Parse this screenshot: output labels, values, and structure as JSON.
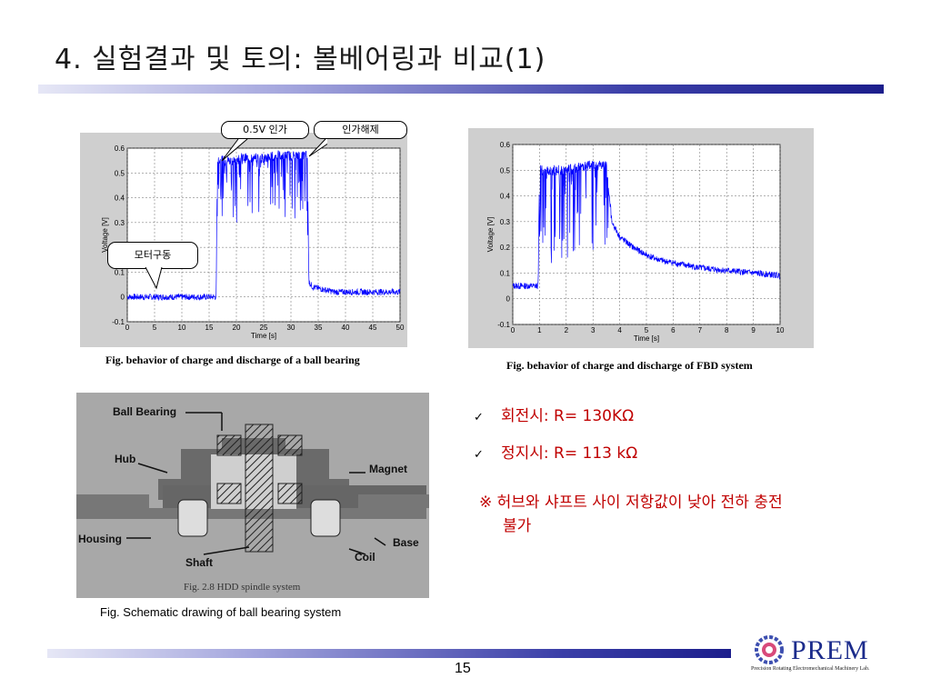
{
  "slide": {
    "title": "4. 실험결과 및 토의: 볼베어링과 비교(1)",
    "page_number": "15"
  },
  "plot_left": {
    "caption": "Fig.  behavior of charge and discharge of a ball bearing",
    "callout_apply": "0.5V 인가",
    "callout_release": "인가해제",
    "callout_motor": "모터구동"
  },
  "plot_right": {
    "caption": "Fig.  behavior of charge and discharge of  FBD system"
  },
  "schematic": {
    "caption": "Fig. Schematic drawing of ball bearing system",
    "labels": {
      "ball_bearing": "Ball Bearing",
      "hub": "Hub",
      "magnet": "Magnet",
      "housing": "Housing",
      "base": "Base",
      "shaft": "Shaft",
      "coil": "Coil"
    },
    "fig_label": "Fig. 2.8 HDD spindle system"
  },
  "results": {
    "rotating": "회전시: R= 130KΩ",
    "stopped": "정지시: R= 113 kΩ",
    "note_line1": "※ 허브와 샤프트 사이 저항값이 낮아 전하 충전",
    "note_line2": "불가"
  },
  "logo": {
    "word": "PREM",
    "subtitle": "Precision Rotating Electromechanical Machinery Lab."
  },
  "colors": {
    "title_bar": "#1c1e8c",
    "trace": "#0000ff",
    "result_text": "#c00000"
  },
  "chart_data": [
    {
      "type": "line",
      "xlabel": "Time [s]",
      "ylabel": "Voltage [V]",
      "xlim": [
        0,
        50
      ],
      "ylim": [
        -0.1,
        0.6
      ],
      "x_ticks": [
        0,
        5,
        10,
        15,
        20,
        25,
        30,
        35,
        40,
        45,
        50
      ],
      "y_ticks": [
        -0.1,
        0,
        0.1,
        0.2,
        0.3,
        0.4,
        0.5,
        0.6
      ],
      "grid": true,
      "series": [
        {
          "x": [
            0,
            5,
            10,
            15,
            16.3,
            16.5,
            17,
            19,
            21,
            23,
            25,
            27,
            29,
            31,
            33,
            33.3,
            34,
            36,
            38,
            40,
            43,
            46,
            50
          ],
          "y": [
            0.0,
            0.0,
            0.0,
            0.0,
            0.0,
            0.55,
            0.55,
            0.55,
            0.56,
            0.56,
            0.56,
            0.57,
            0.57,
            0.57,
            0.57,
            0.06,
            0.04,
            0.03,
            0.02,
            0.02,
            0.02,
            0.02,
            0.02
          ]
        }
      ]
    },
    {
      "type": "line",
      "xlabel": "Time [s]",
      "ylabel": "Voltage [V]",
      "xlim": [
        0,
        10
      ],
      "ylim": [
        -0.1,
        0.6
      ],
      "x_ticks": [
        0,
        1,
        2,
        3,
        4,
        5,
        6,
        7,
        8,
        9,
        10
      ],
      "y_ticks": [
        -0.1,
        0,
        0.1,
        0.2,
        0.3,
        0.4,
        0.5,
        0.6
      ],
      "grid": true,
      "series": [
        {
          "x": [
            0,
            0.5,
            0.95,
            1.0,
            1.5,
            2.0,
            2.5,
            3.0,
            3.5,
            3.7,
            4.0,
            4.5,
            5.0,
            5.5,
            6.0,
            7.0,
            8.0,
            9.0,
            10.0
          ],
          "y": [
            0.05,
            0.05,
            0.05,
            0.5,
            0.5,
            0.5,
            0.51,
            0.52,
            0.52,
            0.3,
            0.24,
            0.2,
            0.17,
            0.15,
            0.14,
            0.12,
            0.11,
            0.1,
            0.09
          ]
        }
      ]
    }
  ]
}
